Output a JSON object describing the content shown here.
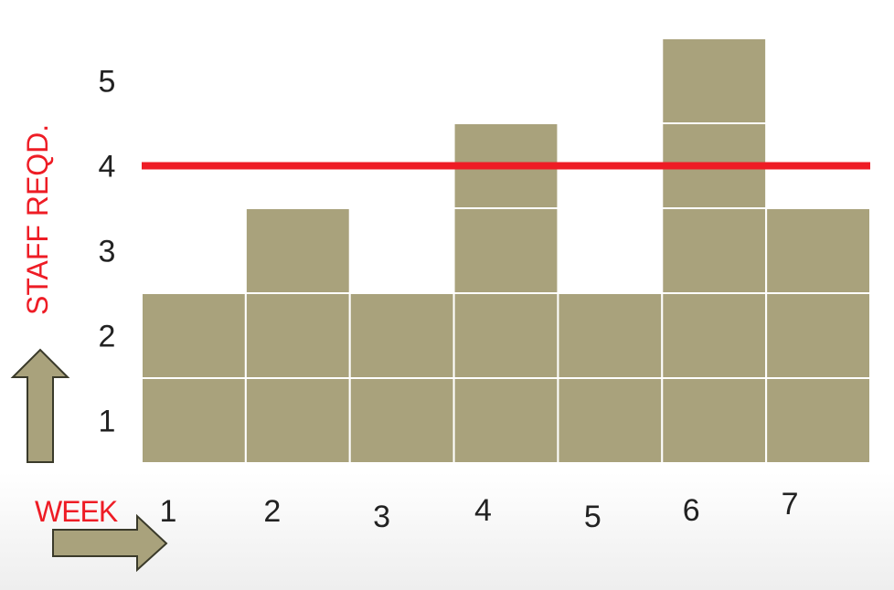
{
  "chart_data": {
    "type": "bar",
    "style": "stacked-unit-blocks",
    "categories": [
      "1",
      "2",
      "3",
      "4",
      "5",
      "6",
      "7"
    ],
    "values": [
      2,
      3,
      2,
      4,
      2,
      5,
      3
    ],
    "y_ticks": [
      "1",
      "2",
      "3",
      "4",
      "5"
    ],
    "xlabel": "WEEK",
    "ylabel": "STAFF REQD.",
    "ylim": [
      0,
      5
    ],
    "grid": false,
    "reference_line": {
      "value": 3.5
    },
    "colors": {
      "block_fill": "#a9a27c",
      "block_border": "#ffffff",
      "reference_line": "#ee1c25",
      "axis_title": "#ee1c25",
      "arrow_fill": "#a9a27c",
      "arrow_stroke": "#3a3a2a"
    },
    "icons": [
      "up-arrow-icon",
      "right-arrow-icon"
    ]
  }
}
